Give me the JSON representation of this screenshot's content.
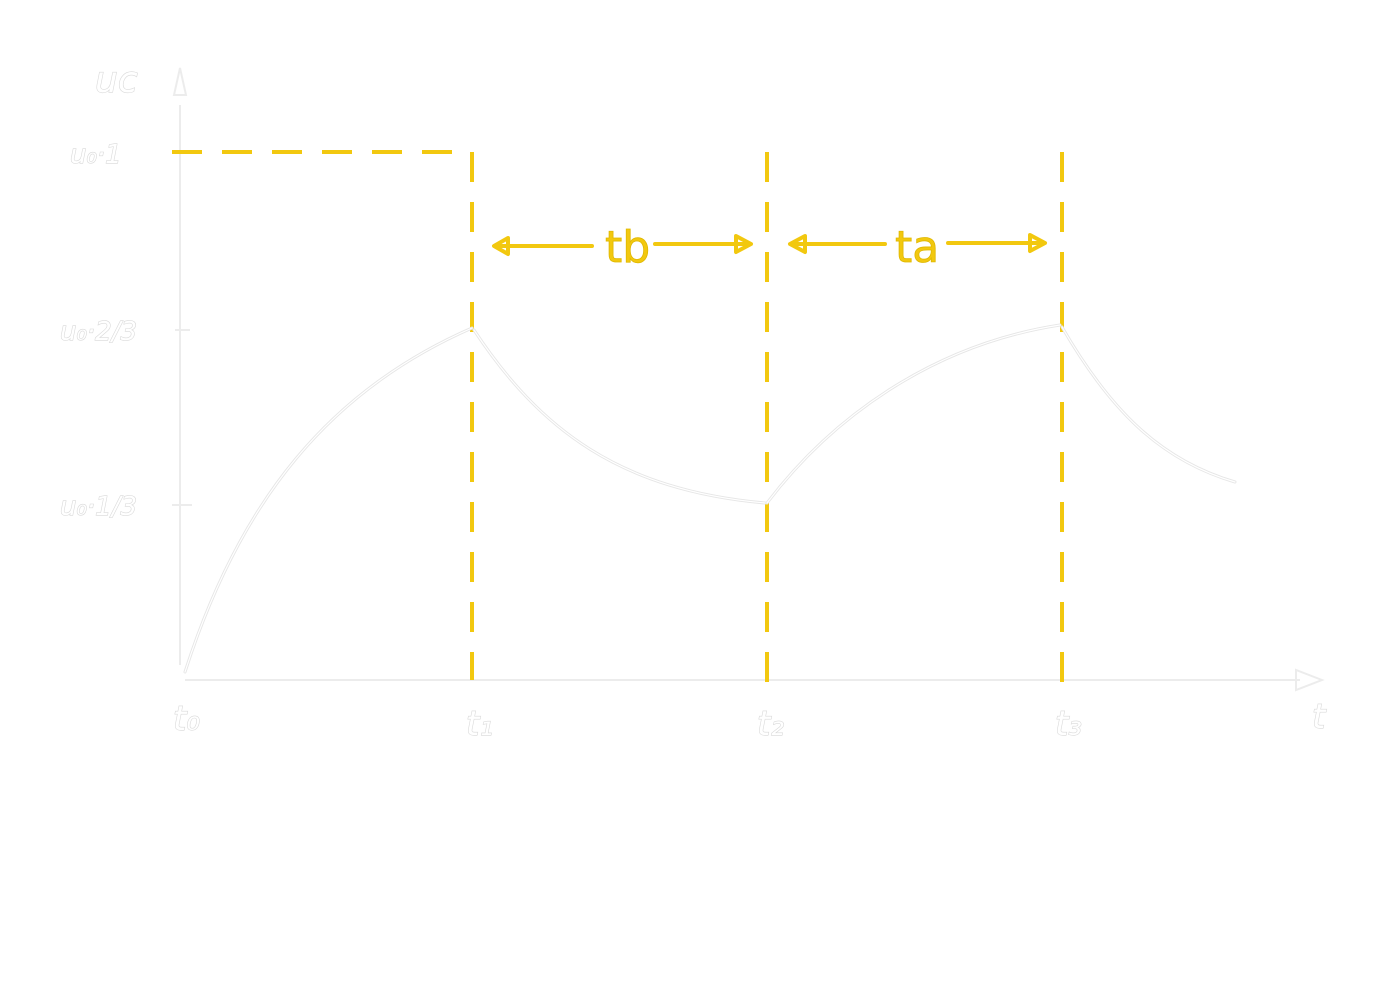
{
  "y_axis": {
    "label": "uc",
    "ticks": {
      "top": "u₀·1",
      "two_thirds": "u₀·2/3",
      "one_third": "u₀·1/3"
    }
  },
  "x_axis": {
    "label": "t",
    "ticks": [
      "t₀",
      "t₁",
      "t₂",
      "t₃"
    ]
  },
  "intervals": {
    "first": "tb",
    "second": "ta"
  },
  "colors": {
    "accent": "#f2c80f",
    "curve": "#e6e6e6",
    "background": "#ffffff"
  }
}
